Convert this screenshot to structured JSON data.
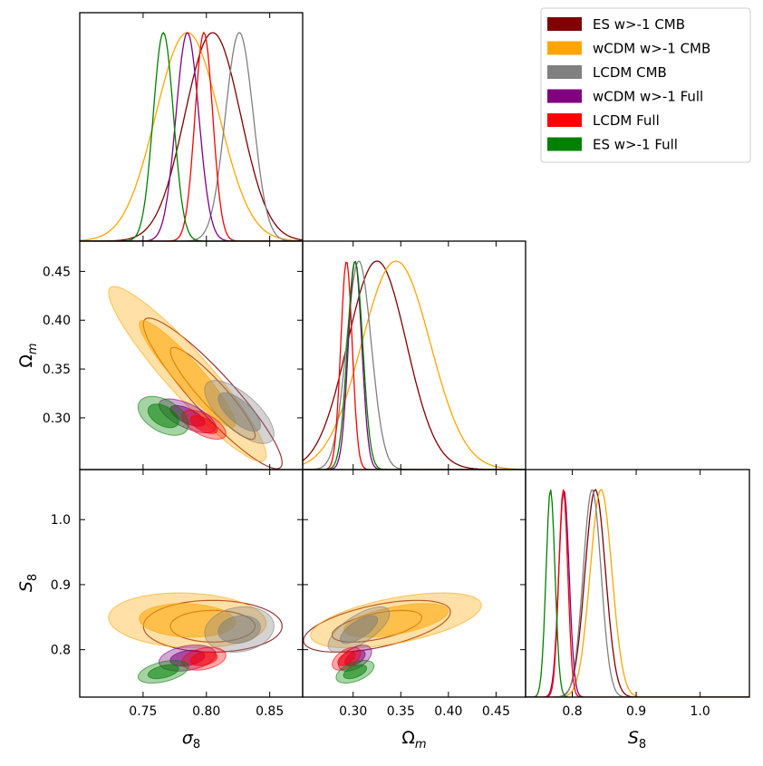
{
  "chart_data": {
    "type": "triangle_corner_plot",
    "parameters": [
      {
        "key": "sigma8",
        "label": "σ",
        "sub": "8",
        "ticks": [
          0.75,
          0.8,
          0.85
        ],
        "tick_labels": [
          "0.75",
          "0.80",
          "0.85"
        ],
        "range": [
          0.7,
          0.876
        ]
      },
      {
        "key": "omegam",
        "label": "Ω",
        "sub": "m",
        "ticks": [
          0.3,
          0.35,
          0.4,
          0.45
        ],
        "tick_labels": [
          "0.30",
          "0.35",
          "0.40",
          "0.45"
        ],
        "range": [
          0.247,
          0.481
        ]
      },
      {
        "key": "s8",
        "label": "S",
        "sub": "8",
        "ticks": [
          0.8,
          0.9,
          1.0
        ],
        "tick_labels": [
          "0.8",
          "0.9",
          "1.0"
        ],
        "range": [
          0.727,
          1.077
        ]
      }
    ],
    "legend": {
      "placement": "top-right",
      "entries": [
        {
          "label": "ES w>-1 CMB",
          "color": "#800000"
        },
        {
          "label": "wCDM w>-1 CMB",
          "color": "#FFA500"
        },
        {
          "label": "LCDM CMB",
          "color": "#808080"
        },
        {
          "label": "wCDM w>-1 Full",
          "color": "#800080"
        },
        {
          "label": "LCDM Full",
          "color": "#FF0000"
        },
        {
          "label": "ES w>-1 Full",
          "color": "#008000"
        }
      ]
    },
    "series": [
      {
        "name": "ES w>-1 CMB",
        "color": "#800000",
        "filled": false,
        "mean": {
          "sigma8": 0.805,
          "omegam": 0.325,
          "s8": 0.836
        },
        "sd": {
          "sigma8": 0.022,
          "omegam": 0.031,
          "s8": 0.016
        },
        "corr": {
          "sigma8-omegam": -0.92,
          "sigma8-s8": 0.0,
          "omegam-s8": 0.55
        }
      },
      {
        "name": "wCDM w>-1 CMB",
        "color": "#FFA500",
        "filled": true,
        "mean": {
          "sigma8": 0.785,
          "omegam": 0.345,
          "s8": 0.845
        },
        "sd": {
          "sigma8": 0.025,
          "omegam": 0.036,
          "s8": 0.017
        },
        "corr": {
          "sigma8-omegam": -0.93,
          "sigma8-s8": -0.1,
          "omegam-s8": 0.55
        }
      },
      {
        "name": "LCDM CMB",
        "color": "#808080",
        "filled": true,
        "mean": {
          "sigma8": 0.826,
          "omegam": 0.306,
          "s8": 0.831
        },
        "sd": {
          "sigma8": 0.011,
          "omegam": 0.013,
          "s8": 0.014
        },
        "corr": {
          "sigma8-omegam": -0.7,
          "sigma8-s8": 0.15,
          "omegam-s8": 0.7
        }
      },
      {
        "name": "wCDM w>-1 Full",
        "color": "#800080",
        "filled": true,
        "mean": {
          "sigma8": 0.785,
          "omegam": 0.302,
          "s8": 0.787
        },
        "sd": {
          "sigma8": 0.009,
          "omegam": 0.007,
          "s8": 0.008
        },
        "corr": {
          "sigma8-omegam": -0.65,
          "sigma8-s8": 0.3,
          "omegam-s8": 0.5
        }
      },
      {
        "name": "LCDM Full",
        "color": "#FF0000",
        "filled": true,
        "mean": {
          "sigma8": 0.798,
          "omegam": 0.293,
          "s8": 0.786
        },
        "sd": {
          "sigma8": 0.007,
          "omegam": 0.006,
          "s8": 0.007
        },
        "corr": {
          "sigma8-omegam": -0.6,
          "sigma8-s8": 0.3,
          "omegam-s8": 0.5
        }
      },
      {
        "name": "ES w>-1 Full",
        "color": "#008000",
        "filled": true,
        "mean": {
          "sigma8": 0.766,
          "omegam": 0.302,
          "s8": 0.766
        },
        "sd": {
          "sigma8": 0.008,
          "omegam": 0.008,
          "s8": 0.007
        },
        "corr": {
          "sigma8-omegam": -0.45,
          "sigma8-s8": 0.45,
          "omegam-s8": 0.5
        }
      }
    ]
  }
}
